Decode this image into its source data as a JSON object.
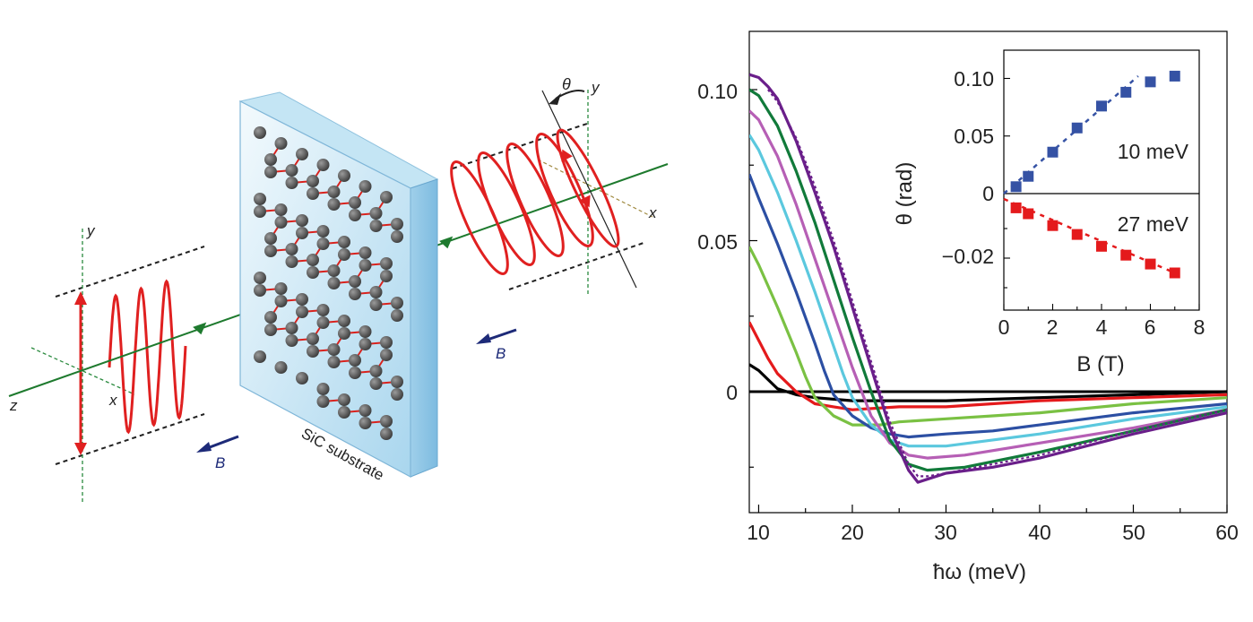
{
  "schematic": {
    "labels": {
      "substrate": "SiC substrate",
      "z": "z",
      "x_left": "x",
      "y_left": "y",
      "x_right": "x",
      "y_right": "y",
      "theta": "θ",
      "B_left": "B",
      "B_right": "B"
    },
    "colors": {
      "wave": "#e02020",
      "beam": "#1e7a2e",
      "field": "#1d2a78",
      "atom": "#555555",
      "glass": "#a9d6ee"
    }
  },
  "main_plot": {
    "xlabel": "ħω (meV)",
    "ytick_labels": [
      "0.10",
      "0.05",
      "0"
    ],
    "xtick_labels": [
      "10",
      "20",
      "30",
      "40",
      "50",
      "60"
    ]
  },
  "inset": {
    "ylabel": "θ (rad)",
    "xlabel": "B (T)",
    "top_label": "10 meV",
    "bottom_label": "27 meV",
    "top_ytick_labels": [
      "0.10",
      "0.05",
      "0"
    ],
    "bottom_ytick_labels": [
      "−0.02"
    ],
    "xtick_labels": [
      "0",
      "2",
      "4",
      "6",
      "8"
    ]
  },
  "chart_data": [
    {
      "type": "line",
      "xlabel": "ħω (meV)",
      "xlim": [
        9,
        60
      ],
      "ylim": [
        -0.038,
        0.12
      ],
      "series": [
        {
          "color": "#000000",
          "x": [
            9,
            10,
            11,
            12,
            14,
            16,
            20,
            25,
            30,
            40,
            50,
            60
          ],
          "y": [
            0.009,
            0.007,
            0.004,
            0.001,
            -0.001,
            -0.002,
            -0.003,
            -0.003,
            -0.003,
            -0.002,
            -0.001,
            0
          ]
        },
        {
          "color": "#e41a1c",
          "x": [
            9,
            10,
            11,
            12,
            14,
            16,
            18,
            20,
            25,
            30,
            40,
            50,
            60
          ],
          "y": [
            0.023,
            0.017,
            0.011,
            0.006,
            0.0,
            -0.004,
            -0.005,
            -0.006,
            -0.005,
            -0.005,
            -0.003,
            -0.002,
            -0.001
          ]
        },
        {
          "color": "#7ac143",
          "x": [
            9,
            10,
            12,
            14,
            15,
            16,
            18,
            20,
            23,
            25,
            30,
            35,
            40,
            50,
            60
          ],
          "y": [
            0.048,
            0.042,
            0.028,
            0.013,
            0.005,
            -0.002,
            -0.008,
            -0.011,
            -0.011,
            -0.01,
            -0.009,
            -0.008,
            -0.007,
            -0.004,
            -0.002
          ]
        },
        {
          "color": "#2c4fa3",
          "x": [
            9,
            10,
            12,
            14,
            16,
            17,
            18,
            20,
            22,
            24,
            26,
            30,
            35,
            40,
            50,
            60
          ],
          "y": [
            0.072,
            0.064,
            0.049,
            0.033,
            0.016,
            0.007,
            -0.001,
            -0.008,
            -0.012,
            -0.014,
            -0.015,
            -0.014,
            -0.013,
            -0.011,
            -0.007,
            -0.004
          ]
        },
        {
          "color": "#5bc8de",
          "x": [
            9,
            10,
            12,
            14,
            16,
            18,
            19,
            20,
            22,
            24,
            26,
            30,
            35,
            40,
            50,
            60
          ],
          "y": [
            0.085,
            0.08,
            0.066,
            0.05,
            0.033,
            0.015,
            0.006,
            -0.002,
            -0.011,
            -0.016,
            -0.018,
            -0.018,
            -0.016,
            -0.014,
            -0.009,
            -0.005
          ]
        },
        {
          "color": "#b65fb5",
          "x": [
            9,
            10,
            12,
            14,
            16,
            18,
            20,
            21,
            22,
            24,
            26,
            28,
            32,
            40,
            50,
            60
          ],
          "y": [
            0.093,
            0.09,
            0.078,
            0.062,
            0.044,
            0.026,
            0.008,
            0.0,
            -0.008,
            -0.017,
            -0.021,
            -0.022,
            -0.021,
            -0.017,
            -0.012,
            -0.006
          ]
        },
        {
          "color": "#117a3a",
          "x": [
            9,
            10,
            12,
            14,
            16,
            18,
            20,
            22,
            23,
            24,
            26,
            28,
            32,
            40,
            50,
            60
          ],
          "y": [
            0.1,
            0.098,
            0.088,
            0.073,
            0.056,
            0.037,
            0.018,
            0.0,
            -0.008,
            -0.016,
            -0.024,
            -0.026,
            -0.025,
            -0.02,
            -0.013,
            -0.006
          ]
        },
        {
          "color": "#6a1f8a",
          "x": [
            9,
            10,
            11,
            12,
            14,
            16,
            18,
            20,
            22,
            24,
            26,
            27,
            28,
            30,
            35,
            40,
            50,
            60
          ],
          "y": [
            0.105,
            0.104,
            0.101,
            0.097,
            0.083,
            0.066,
            0.048,
            0.028,
            0.008,
            -0.012,
            -0.026,
            -0.03,
            -0.029,
            -0.027,
            -0.025,
            -0.022,
            -0.014,
            -0.007
          ]
        },
        {
          "color": "#6a1f8a",
          "dashed": true,
          "x": [
            11,
            12,
            14,
            16,
            18,
            20,
            22,
            24,
            26,
            27,
            28,
            30,
            35,
            40,
            50,
            60
          ],
          "y": [
            0.1,
            0.096,
            0.084,
            0.068,
            0.05,
            0.03,
            0.01,
            -0.01,
            -0.024,
            -0.028,
            -0.028,
            -0.027,
            -0.024,
            -0.021,
            -0.013,
            -0.006
          ]
        }
      ]
    },
    {
      "type": "scatter",
      "xlabel": "B (T)",
      "ylabel": "θ (rad)",
      "annotation": "10 meV",
      "xlim": [
        0,
        8
      ],
      "ylim": [
        0,
        0.12
      ],
      "x": [
        0.5,
        1,
        2,
        3,
        4,
        5,
        6,
        7
      ],
      "y": [
        0.006,
        0.015,
        0.036,
        0.057,
        0.076,
        0.088,
        0.097,
        0.102
      ],
      "fit": {
        "x": [
          0,
          5.5
        ],
        "y": [
          0,
          0.102
        ]
      },
      "color": "#3552a4"
    },
    {
      "type": "scatter",
      "xlabel": "B (T)",
      "ylabel": "θ (rad)",
      "annotation": "27 meV",
      "xlim": [
        0,
        8
      ],
      "ylim": [
        -0.03,
        0
      ],
      "x": [
        0.5,
        1,
        2,
        3,
        4,
        5,
        6,
        7
      ],
      "y": [
        -0.003,
        -0.005,
        -0.009,
        -0.012,
        -0.016,
        -0.019,
        -0.022,
        -0.025
      ],
      "fit": {
        "x": [
          0,
          7
        ],
        "y": [
          0,
          -0.025
        ]
      },
      "color": "#e41a1c"
    }
  ]
}
